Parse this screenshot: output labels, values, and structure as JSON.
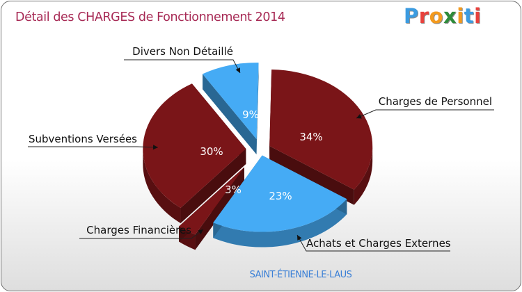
{
  "title": "Détail des CHARGES de Fonctionnement 2014",
  "logo": {
    "letters": [
      "P",
      "r",
      "o",
      "x",
      "i",
      "t",
      "i"
    ]
  },
  "place": "SAINT-ÉTIENNE-LE-LAUS",
  "colors": {
    "dark_red": "#7a1518",
    "blue": "#45abf5",
    "title": "#a72a55",
    "place": "#3a7fd6"
  },
  "chart_data": {
    "type": "pie",
    "title": "Détail des CHARGES de Fonctionnement 2014",
    "style": "3d-exploded",
    "slices": [
      {
        "label": "Charges de Personnel",
        "value": 34,
        "pct_label": "34%",
        "color": "#7a1518"
      },
      {
        "label": "Achats et Charges Externes",
        "value": 23,
        "pct_label": "23%",
        "color": "#45abf5"
      },
      {
        "label": "Charges Financières",
        "value": 3,
        "pct_label": "3%",
        "color": "#7a1518"
      },
      {
        "label": "Subventions Versées",
        "value": 30,
        "pct_label": "30%",
        "color": "#7a1518"
      },
      {
        "label": "Divers Non Détaillé",
        "value": 9,
        "pct_label": "9%",
        "color": "#45abf5"
      }
    ]
  }
}
